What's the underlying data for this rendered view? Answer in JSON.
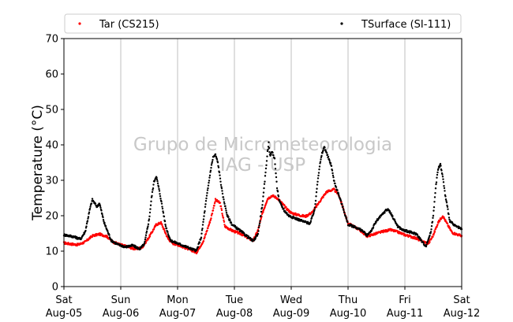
{
  "chart_data": {
    "type": "scatter",
    "title": "",
    "xlabel": "",
    "ylabel": "Temperature (°C)",
    "ylim": [
      0,
      70
    ],
    "yticks": [
      0,
      10,
      20,
      30,
      40,
      50,
      60,
      70
    ],
    "xlim": [
      "2017-08-05",
      "2017-08-12"
    ],
    "xticks": [
      {
        "day": "Sat",
        "date": "Aug-05"
      },
      {
        "day": "Sun",
        "date": "Aug-06"
      },
      {
        "day": "Mon",
        "date": "Aug-07"
      },
      {
        "day": "Tue",
        "date": "Aug-08"
      },
      {
        "day": "Wed",
        "date": "Aug-09"
      },
      {
        "day": "Thu",
        "date": "Aug-10"
      },
      {
        "day": "Fri",
        "date": "Aug-11"
      },
      {
        "day": "Sat",
        "date": "Aug-12"
      }
    ],
    "grid": "vertical",
    "legend_position": "top",
    "watermark": [
      "Grupo de Micrometeorologia",
      "IAG - USP"
    ],
    "series": [
      {
        "name": "Tar (CS215)",
        "color": "#ff0000",
        "points": [
          [
            "2017-08-05 00:00",
            12.3
          ],
          [
            "2017-08-05 03:00",
            12.0
          ],
          [
            "2017-08-05 06:00",
            11.8
          ],
          [
            "2017-08-05 09:00",
            12.6
          ],
          [
            "2017-08-05 12:00",
            14.3
          ],
          [
            "2017-08-05 15:00",
            14.8
          ],
          [
            "2017-08-05 18:00",
            14.2
          ],
          [
            "2017-08-05 21:00",
            12.5
          ],
          [
            "2017-08-06 00:00",
            11.8
          ],
          [
            "2017-08-06 03:00",
            11.2
          ],
          [
            "2017-08-06 06:00",
            10.6
          ],
          [
            "2017-08-06 09:00",
            11.0
          ],
          [
            "2017-08-06 12:00",
            14.0
          ],
          [
            "2017-08-06 15:00",
            17.5
          ],
          [
            "2017-08-06 17:00",
            18.0
          ],
          [
            "2017-08-06 20:00",
            13.5
          ],
          [
            "2017-08-06 22:00",
            12.2
          ],
          [
            "2017-08-07 00:00",
            11.8
          ],
          [
            "2017-08-07 03:00",
            11.0
          ],
          [
            "2017-08-07 06:00",
            10.2
          ],
          [
            "2017-08-07 08:00",
            9.6
          ],
          [
            "2017-08-07 11:00",
            13.0
          ],
          [
            "2017-08-07 14:00",
            19.0
          ],
          [
            "2017-08-07 16:00",
            24.5
          ],
          [
            "2017-08-07 18:00",
            23.5
          ],
          [
            "2017-08-07 20:00",
            17.0
          ],
          [
            "2017-08-07 23:00",
            15.8
          ],
          [
            "2017-08-08 03:00",
            14.8
          ],
          [
            "2017-08-08 06:00",
            13.6
          ],
          [
            "2017-08-08 08:00",
            13.0
          ],
          [
            "2017-08-08 10:00",
            16.0
          ],
          [
            "2017-08-08 12:00",
            21.0
          ],
          [
            "2017-08-08 14:00",
            24.8
          ],
          [
            "2017-08-08 16:00",
            25.7
          ],
          [
            "2017-08-08 18:00",
            25.0
          ],
          [
            "2017-08-08 20:00",
            23.6
          ],
          [
            "2017-08-08 22:00",
            22.0
          ],
          [
            "2017-08-09 00:00",
            20.8
          ],
          [
            "2017-08-09 03:00",
            20.2
          ],
          [
            "2017-08-09 06:00",
            19.8
          ],
          [
            "2017-08-09 09:00",
            21.0
          ],
          [
            "2017-08-09 12:00",
            24.0
          ],
          [
            "2017-08-09 15:00",
            26.8
          ],
          [
            "2017-08-09 18:00",
            27.4
          ],
          [
            "2017-08-09 20:00",
            26.0
          ],
          [
            "2017-08-09 22:00",
            22.0
          ],
          [
            "2017-08-10 00:00",
            17.8
          ],
          [
            "2017-08-10 03:00",
            16.8
          ],
          [
            "2017-08-10 06:00",
            15.4
          ],
          [
            "2017-08-10 08:00",
            14.2
          ],
          [
            "2017-08-10 11:00",
            14.8
          ],
          [
            "2017-08-10 15:00",
            15.6
          ],
          [
            "2017-08-10 18:00",
            16.0
          ],
          [
            "2017-08-10 21:00",
            15.4
          ],
          [
            "2017-08-11 00:00",
            14.6
          ],
          [
            "2017-08-11 04:00",
            13.8
          ],
          [
            "2017-08-11 08:00",
            12.6
          ],
          [
            "2017-08-11 10:00",
            12.2
          ],
          [
            "2017-08-11 12:00",
            14.5
          ],
          [
            "2017-08-11 14:00",
            18.0
          ],
          [
            "2017-08-11 16:00",
            20.0
          ],
          [
            "2017-08-11 18:00",
            17.5
          ],
          [
            "2017-08-11 20:00",
            15.2
          ],
          [
            "2017-08-11 24:00",
            14.3
          ]
        ]
      },
      {
        "name": "TSurface (SI-111)",
        "color": "#000000",
        "points": [
          [
            "2017-08-05 00:00",
            14.6
          ],
          [
            "2017-08-05 04:00",
            14.1
          ],
          [
            "2017-08-05 07:00",
            13.4
          ],
          [
            "2017-08-05 09:00",
            15.5
          ],
          [
            "2017-08-05 11:00",
            22.0
          ],
          [
            "2017-08-05 12:00",
            24.5
          ],
          [
            "2017-08-05 14:00",
            22.5
          ],
          [
            "2017-08-05 15:00",
            23.6
          ],
          [
            "2017-08-05 17:00",
            18.0
          ],
          [
            "2017-08-05 20:00",
            13.0
          ],
          [
            "2017-08-05 23:00",
            11.8
          ],
          [
            "2017-08-06 02:00",
            11.2
          ],
          [
            "2017-08-06 05:00",
            11.6
          ],
          [
            "2017-08-06 08:00",
            10.6
          ],
          [
            "2017-08-06 10:00",
            12.0
          ],
          [
            "2017-08-06 12:00",
            19.0
          ],
          [
            "2017-08-06 13:00",
            25.0
          ],
          [
            "2017-08-06 14:00",
            29.5
          ],
          [
            "2017-08-06 15:00",
            31.2
          ],
          [
            "2017-08-06 16:00",
            28.0
          ],
          [
            "2017-08-06 17:00",
            24.5
          ],
          [
            "2017-08-06 19:00",
            17.0
          ],
          [
            "2017-08-06 21:00",
            13.0
          ],
          [
            "2017-08-07 00:00",
            12.2
          ],
          [
            "2017-08-07 03:00",
            11.4
          ],
          [
            "2017-08-07 06:00",
            10.6
          ],
          [
            "2017-08-07 08:00",
            10.1
          ],
          [
            "2017-08-07 10:00",
            14.0
          ],
          [
            "2017-08-07 12:00",
            24.0
          ],
          [
            "2017-08-07 14:00",
            33.0
          ],
          [
            "2017-08-07 15:00",
            36.5
          ],
          [
            "2017-08-07 16:00",
            37.2
          ],
          [
            "2017-08-07 17:00",
            35.0
          ],
          [
            "2017-08-07 19:00",
            26.0
          ],
          [
            "2017-08-07 21:00",
            20.0
          ],
          [
            "2017-08-07 23:00",
            17.5
          ],
          [
            "2017-08-08 02:00",
            16.0
          ],
          [
            "2017-08-08 05:00",
            14.4
          ],
          [
            "2017-08-08 08:00",
            12.8
          ],
          [
            "2017-08-08 10:00",
            15.0
          ],
          [
            "2017-08-08 12:00",
            24.0
          ],
          [
            "2017-08-08 13:00",
            31.0
          ],
          [
            "2017-08-08 14:00",
            38.0
          ],
          [
            "2017-08-08 14:30",
            40.6
          ],
          [
            "2017-08-08 15:00",
            37.0
          ],
          [
            "2017-08-08 16:00",
            38.0
          ],
          [
            "2017-08-08 17:00",
            36.0
          ],
          [
            "2017-08-08 18:00",
            28.0
          ],
          [
            "2017-08-08 19:00",
            24.0
          ],
          [
            "2017-08-08 21:00",
            21.5
          ],
          [
            "2017-08-08 23:00",
            20.0
          ],
          [
            "2017-08-09 02:00",
            19.2
          ],
          [
            "2017-08-09 05:00",
            18.4
          ],
          [
            "2017-08-09 08:00",
            17.8
          ],
          [
            "2017-08-09 10:00",
            22.0
          ],
          [
            "2017-08-09 11:00",
            29.0
          ],
          [
            "2017-08-09 12:00",
            34.0
          ],
          [
            "2017-08-09 13:00",
            37.5
          ],
          [
            "2017-08-09 14:00",
            39.5
          ],
          [
            "2017-08-09 15:00",
            37.5
          ],
          [
            "2017-08-09 17:00",
            34.0
          ],
          [
            "2017-08-09 18:00",
            30.0
          ],
          [
            "2017-08-09 20:00",
            26.0
          ],
          [
            "2017-08-09 22:00",
            22.0
          ],
          [
            "2017-08-10 00:00",
            17.5
          ],
          [
            "2017-08-10 03:00",
            16.8
          ],
          [
            "2017-08-10 06:00",
            15.8
          ],
          [
            "2017-08-10 08:00",
            14.4
          ],
          [
            "2017-08-10 10:00",
            16.0
          ],
          [
            "2017-08-10 12:00",
            18.5
          ],
          [
            "2017-08-10 14:00",
            20.0
          ],
          [
            "2017-08-10 16:00",
            21.5
          ],
          [
            "2017-08-10 17:00",
            21.8
          ],
          [
            "2017-08-10 19:00",
            19.5
          ],
          [
            "2017-08-10 21:00",
            17.0
          ],
          [
            "2017-08-10 23:00",
            16.0
          ],
          [
            "2017-08-11 02:00",
            15.4
          ],
          [
            "2017-08-11 05:00",
            14.8
          ],
          [
            "2017-08-11 08:00",
            12.0
          ],
          [
            "2017-08-11 09:00",
            11.5
          ],
          [
            "2017-08-11 11:00",
            15.5
          ],
          [
            "2017-08-11 12:00",
            20.0
          ],
          [
            "2017-08-11 13:00",
            28.0
          ],
          [
            "2017-08-11 14:00",
            33.0
          ],
          [
            "2017-08-11 15:00",
            34.5
          ],
          [
            "2017-08-11 16:00",
            31.0
          ],
          [
            "2017-08-11 17:00",
            26.0
          ],
          [
            "2017-08-11 19:00",
            18.5
          ],
          [
            "2017-08-11 21:00",
            17.2
          ],
          [
            "2017-08-11 24:00",
            16.2
          ]
        ]
      }
    ]
  }
}
